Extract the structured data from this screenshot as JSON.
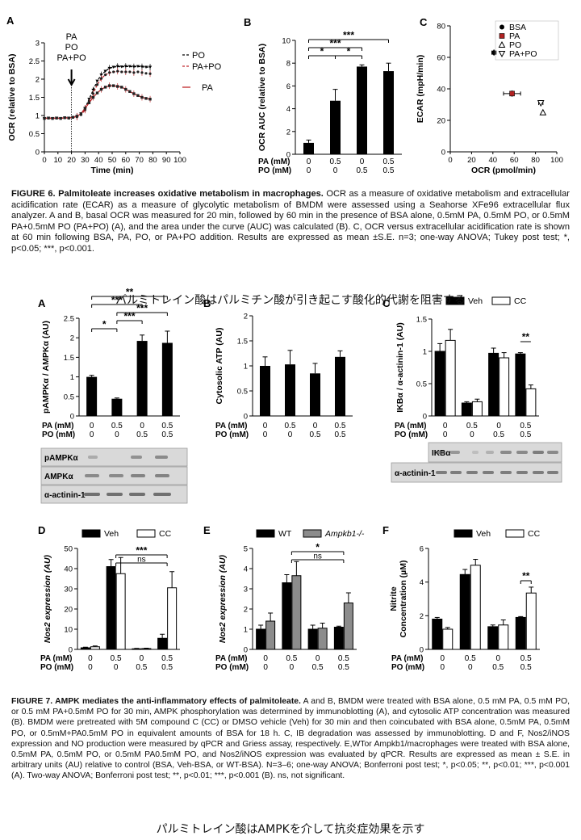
{
  "fig6": {
    "caption_title": "FIGURE 6. Palmitoleate increases oxidative metabolism in macrophages.",
    "caption_text": "OCR as a measure of oxidative metabolism and extracellular acidification rate (ECAR) as a measure of glycolytic metabolism of BMDM were assessed using a Seahorse XFe96 extracellular flux analyzer. A and B, basal OCR was measured for 20 min, followed by 60 min in the presence of BSA alone, 0.5mM PA, 0.5mM PO, or 0.5mM PA+0.5mM PO (PA+PO) (A), and the area under the curve (AUC) was calculated (B). C, OCR versus extracellular acidification rate is shown at 60 min following BSA, PA, PO, or PA+PO addition. Results are expressed as mean ±S.E. n=3; one-way ANOVA; Tukey post test; *, p<0.05; ***, p<0.001.",
    "japanese": "パルミトレイン酸はパルミチン酸が引き起こす酸化的代謝を阻害する"
  },
  "fig7": {
    "caption_title": "FIGURE 7. AMPK mediates the anti-inflammatory effects of palmitoleate.",
    "caption_text": "A and B, BMDM were treated with BSA alone, 0.5 mM PA, 0.5 mM PO, or 0.5 mM PA+0.5mM PO for 30 min, AMPK phosphorylation was determined by immunoblotting (A), and cytosolic ATP concentration was measured (B). BMDM were pretreated with 5M compound C (CC) or DMSO vehicle (Veh) for 30 min and then coincubated with BSA alone, 0.5mM PA, 0.5mM PO, or 0.5mM+PA0.5mM PO in equivalent amounts of BSA for 18 h. C, IB degradation was assessed by immunoblotting. D and F, Nos2/iNOS expression and NO production were measured by qPCR and Griess assay, respectively. E,WTor Ampkb1/macrophages were treated with BSA alone, 0.5mM PA, 0.5mM PO, or 0.5mM PA0.5mM PO, and Nos2/iNOS expression was evaluated by qPCR. Results are expressed as mean ± S.E. in arbitrary units (AU) relative to control (BSA, Veh-BSA, or WT-BSA). N=3–6; one-way ANOVA; Bonferroni post test; *, p<0.05; **, p<0.01; ***, p<0.001 (A). Two-way ANOVA; Bonferroni post test; **, p<0.01; ***, p<0.001 (B). ns, not significant.",
    "japanese": "パルミトレイン酸はAMPKを介して抗炎症効果を示す"
  },
  "treat_labels": {
    "pa": "PA (mM)",
    "po": "PO (mM)",
    "pa_vals": [
      "0",
      "0.5",
      "0",
      "0.5"
    ],
    "po_vals": [
      "0",
      "0",
      "0.5",
      "0.5"
    ]
  },
  "blot_labels": {
    "pampk": "pAMPKα",
    "ampk": "AMPKα",
    "actinin": "α-actinin-1",
    "ikb": "IKBα"
  },
  "chart_data": [
    {
      "panel": "6A",
      "type": "line",
      "xlabel": "Time (min)",
      "ylabel": "OCR (relative to BSA)",
      "xlim": [
        0,
        100
      ],
      "ylim": [
        0,
        3.0
      ],
      "xticks": [
        0,
        10,
        20,
        30,
        40,
        50,
        60,
        70,
        80,
        90,
        100
      ],
      "yticks": [
        0,
        0.5,
        1.0,
        1.5,
        2.0,
        2.5,
        3.0
      ],
      "annotation": [
        "PA",
        "PO",
        "PA+PO"
      ],
      "arrow_x": 20,
      "x": [
        0,
        3,
        6,
        9,
        12,
        15,
        18,
        21,
        24,
        27,
        30,
        33,
        36,
        39,
        42,
        45,
        48,
        51,
        54,
        57,
        60,
        63,
        66,
        69,
        72,
        75,
        78
      ],
      "series": [
        {
          "name": "PO",
          "values": [
            0.92,
            0.93,
            0.92,
            0.93,
            0.92,
            0.94,
            0.93,
            0.95,
            0.97,
            1.05,
            1.2,
            1.45,
            1.7,
            1.95,
            2.12,
            2.22,
            2.3,
            2.33,
            2.35,
            2.34,
            2.35,
            2.35,
            2.34,
            2.35,
            2.34,
            2.33,
            2.33
          ]
        },
        {
          "name": "PA+PO",
          "values": [
            0.92,
            0.93,
            0.92,
            0.93,
            0.92,
            0.94,
            0.93,
            0.95,
            0.96,
            1.02,
            1.15,
            1.38,
            1.6,
            1.85,
            2.02,
            2.12,
            2.18,
            2.2,
            2.22,
            2.2,
            2.2,
            2.2,
            2.18,
            2.2,
            2.18,
            2.16,
            2.15
          ]
        },
        {
          "name": "PA",
          "values": [
            0.92,
            0.93,
            0.92,
            0.93,
            0.92,
            0.94,
            0.93,
            0.95,
            0.98,
            1.05,
            1.2,
            1.35,
            1.5,
            1.62,
            1.72,
            1.78,
            1.82,
            1.82,
            1.8,
            1.78,
            1.72,
            1.66,
            1.6,
            1.55,
            1.5,
            1.47,
            1.45
          ]
        }
      ]
    },
    {
      "panel": "6B",
      "type": "bar",
      "ylabel": "OCR AUC (relative to BSA)",
      "ylim": [
        0,
        10
      ],
      "yticks": [
        0,
        2,
        4,
        6,
        8,
        10
      ],
      "values": [
        1.0,
        4.7,
        7.7,
        7.3
      ],
      "errors": [
        0.25,
        1.0,
        0.15,
        0.7
      ],
      "sig": [
        {
          "from": 0,
          "to": 1,
          "label": "*"
        },
        {
          "from": 1,
          "to": 2,
          "label": "*"
        },
        {
          "from": 0,
          "to": 2,
          "label": "***"
        },
        {
          "from": 0,
          "to": 3,
          "label": "***"
        }
      ]
    },
    {
      "panel": "6C",
      "type": "scatter",
      "xlabel": "OCR (pmol/min)",
      "ylabel": "ECAR (mpH/min)",
      "xlim": [
        0,
        100
      ],
      "ylim": [
        0,
        80
      ],
      "xticks": [
        0,
        20,
        40,
        60,
        80,
        100
      ],
      "yticks": [
        0,
        20,
        40,
        60,
        80
      ],
      "series": [
        {
          "name": "BSA",
          "x": 41,
          "y": 63,
          "xerr": 2,
          "yerr": 2,
          "marker": "dot"
        },
        {
          "name": "PA",
          "x": 58,
          "y": 37,
          "xerr": 8,
          "yerr": 2,
          "marker": "square",
          "color": "#b22222"
        },
        {
          "name": "PO",
          "x": 87,
          "y": 25,
          "xerr": 0,
          "yerr": 1,
          "marker": "triangle-up"
        },
        {
          "name": "PA+PO",
          "x": 85,
          "y": 31,
          "xerr": 2,
          "yerr": 1,
          "marker": "triangle-down"
        }
      ]
    },
    {
      "panel": "7A",
      "type": "bar",
      "ylabel": "pAMPKα / AMPKα (AU)",
      "ylim": [
        0,
        2.5
      ],
      "yticks": [
        0,
        0.5,
        1.0,
        1.5,
        2.0,
        2.5
      ],
      "values": [
        1.0,
        0.44,
        1.92,
        1.87
      ],
      "errors": [
        0.04,
        0.02,
        0.15,
        0.3
      ],
      "sig": [
        {
          "from": 0,
          "to": 1,
          "label": "*"
        },
        {
          "from": 1,
          "to": 2,
          "label": "***"
        },
        {
          "from": 1,
          "to": 3,
          "label": "***"
        },
        {
          "from": 0,
          "to": 2,
          "label": "***"
        },
        {
          "from": 0,
          "to": 3,
          "label": "**"
        }
      ]
    },
    {
      "panel": "7B",
      "type": "bar",
      "ylabel": "Cytosolic ATP (AU)",
      "ylim": [
        0,
        2.0
      ],
      "yticks": [
        0,
        0.5,
        1.0,
        1.5,
        2.0
      ],
      "values": [
        1.0,
        1.03,
        0.85,
        1.18
      ],
      "errors": [
        0.18,
        0.28,
        0.2,
        0.12
      ]
    },
    {
      "panel": "7C",
      "type": "bar",
      "ylabel": "IKBα / α-actinin-1 (AU)",
      "ylim": [
        0,
        1.5
      ],
      "yticks": [
        0,
        0.5,
        1.0,
        1.5
      ],
      "legend": [
        "Veh",
        "CC"
      ],
      "series": [
        {
          "name": "Veh",
          "values": [
            1.0,
            0.2,
            0.97,
            0.96
          ],
          "errors": [
            0.12,
            0.02,
            0.08,
            0.02
          ]
        },
        {
          "name": "CC",
          "values": [
            1.17,
            0.22,
            0.9,
            0.42
          ],
          "errors": [
            0.17,
            0.04,
            0.08,
            0.06
          ]
        }
      ],
      "sig": [
        {
          "group": 3,
          "label": "**"
        }
      ]
    },
    {
      "panel": "7D",
      "type": "bar",
      "ylabel": "Nos2 expression (AU)",
      "ylim": [
        0,
        50
      ],
      "yticks": [
        0,
        10,
        20,
        30,
        40,
        50
      ],
      "legend": [
        "Veh",
        "CC"
      ],
      "series": [
        {
          "name": "Veh",
          "values": [
            0.8,
            41,
            0.3,
            5.5
          ],
          "errors": [
            0.3,
            3.5,
            0.2,
            2
          ]
        },
        {
          "name": "CC",
          "values": [
            1.3,
            37.5,
            0.4,
            30.5
          ],
          "errors": [
            0.4,
            8,
            0.2,
            8
          ]
        }
      ],
      "sig": [
        {
          "from": 1,
          "to": 3,
          "label": "***"
        },
        {
          "from": 1,
          "to": 3,
          "label": "ns"
        }
      ]
    },
    {
      "panel": "7E",
      "type": "bar",
      "ylabel": "Nos2 expression (AU)",
      "ylim": [
        0,
        5
      ],
      "yticks": [
        0,
        1,
        2,
        3,
        4,
        5
      ],
      "legend": [
        "WT",
        "Ampkb1-/-"
      ],
      "series": [
        {
          "name": "WT",
          "values": [
            1.0,
            3.3,
            1.0,
            1.1
          ],
          "errors": [
            0.2,
            0.4,
            0.2,
            0.05
          ]
        },
        {
          "name": "Ampkb1-/-",
          "values": [
            1.4,
            3.65,
            1.05,
            2.3
          ],
          "errors": [
            0.4,
            0.7,
            0.25,
            0.5
          ]
        }
      ],
      "sig": [
        {
          "from": 1,
          "to": 3,
          "label": "*"
        },
        {
          "from": 1,
          "to": 3,
          "label": "ns"
        }
      ]
    },
    {
      "panel": "7F",
      "type": "bar",
      "ylabel": "Nitrite Concentration (µM)",
      "ylim": [
        0,
        6
      ],
      "yticks": [
        0,
        2,
        4,
        6
      ],
      "legend": [
        "Veh",
        "CC"
      ],
      "series": [
        {
          "name": "Veh",
          "values": [
            1.8,
            4.45,
            1.35,
            1.9
          ],
          "errors": [
            0.1,
            0.3,
            0.1,
            0.05
          ]
        },
        {
          "name": "CC",
          "values": [
            1.2,
            5.0,
            1.45,
            3.35
          ],
          "errors": [
            0.1,
            0.35,
            0.3,
            0.35
          ]
        }
      ],
      "sig": [
        {
          "group": 3,
          "label": "**"
        }
      ]
    }
  ]
}
